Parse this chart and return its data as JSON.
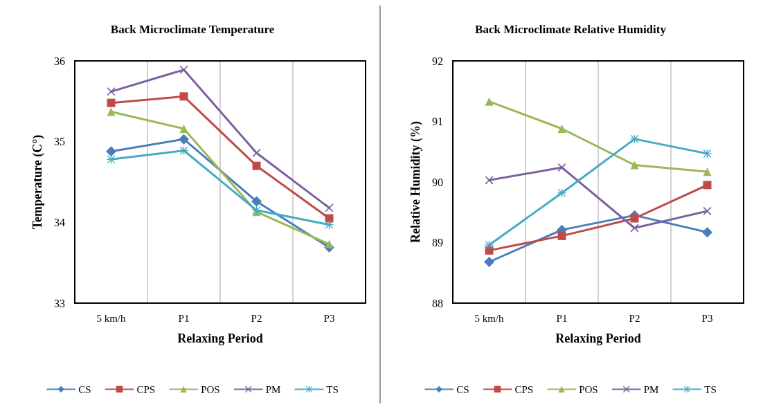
{
  "chart_data": [
    {
      "type": "line",
      "title": "Back Microclimate Temperature",
      "xlabel": "Relaxing Period",
      "ylabel": "Temperature (C°)",
      "categories": [
        "5 km/h",
        "P1",
        "P2",
        "P3"
      ],
      "ylim": [
        33,
        36
      ],
      "yticks": [
        33,
        34,
        35,
        36
      ],
      "grid": "x",
      "legend": "bottom",
      "series": [
        {
          "name": "CS",
          "color": "#4a7ebb",
          "marker": "diamond",
          "values": [
            34.88,
            35.03,
            34.26,
            33.69
          ]
        },
        {
          "name": "CPS",
          "color": "#be4b48",
          "marker": "square",
          "values": [
            35.48,
            35.56,
            34.7,
            34.05
          ]
        },
        {
          "name": "POS",
          "color": "#98b954",
          "marker": "triangle",
          "values": [
            35.37,
            35.16,
            34.13,
            33.73
          ]
        },
        {
          "name": "PM",
          "color": "#7d60a0",
          "marker": "cross",
          "values": [
            35.62,
            35.89,
            34.86,
            34.18
          ]
        },
        {
          "name": "TS",
          "color": "#46aac5",
          "marker": "star",
          "values": [
            34.78,
            34.89,
            34.15,
            33.97
          ]
        }
      ]
    },
    {
      "type": "line",
      "title": "Back Microclimate Relative Humidity",
      "xlabel": "Relaxing Period",
      "ylabel": "Relative Humidity (%)",
      "categories": [
        "5 km/h",
        "P1",
        "P2",
        "P3"
      ],
      "ylim": [
        88,
        92
      ],
      "yticks": [
        88,
        89,
        90,
        91,
        92
      ],
      "grid": "x",
      "legend": "bottom",
      "series": [
        {
          "name": "CS",
          "color": "#4a7ebb",
          "marker": "diamond",
          "values": [
            88.68,
            89.21,
            89.45,
            89.17
          ]
        },
        {
          "name": "CPS",
          "color": "#be4b48",
          "marker": "square",
          "values": [
            88.87,
            89.11,
            89.4,
            89.95
          ]
        },
        {
          "name": "POS",
          "color": "#98b954",
          "marker": "triangle",
          "values": [
            91.33,
            90.88,
            90.28,
            90.17
          ]
        },
        {
          "name": "PM",
          "color": "#7d60a0",
          "marker": "cross",
          "values": [
            90.03,
            90.24,
            89.24,
            89.52
          ]
        },
        {
          "name": "TS",
          "color": "#46aac5",
          "marker": "star",
          "values": [
            88.96,
            89.82,
            90.71,
            90.47
          ]
        }
      ]
    }
  ]
}
